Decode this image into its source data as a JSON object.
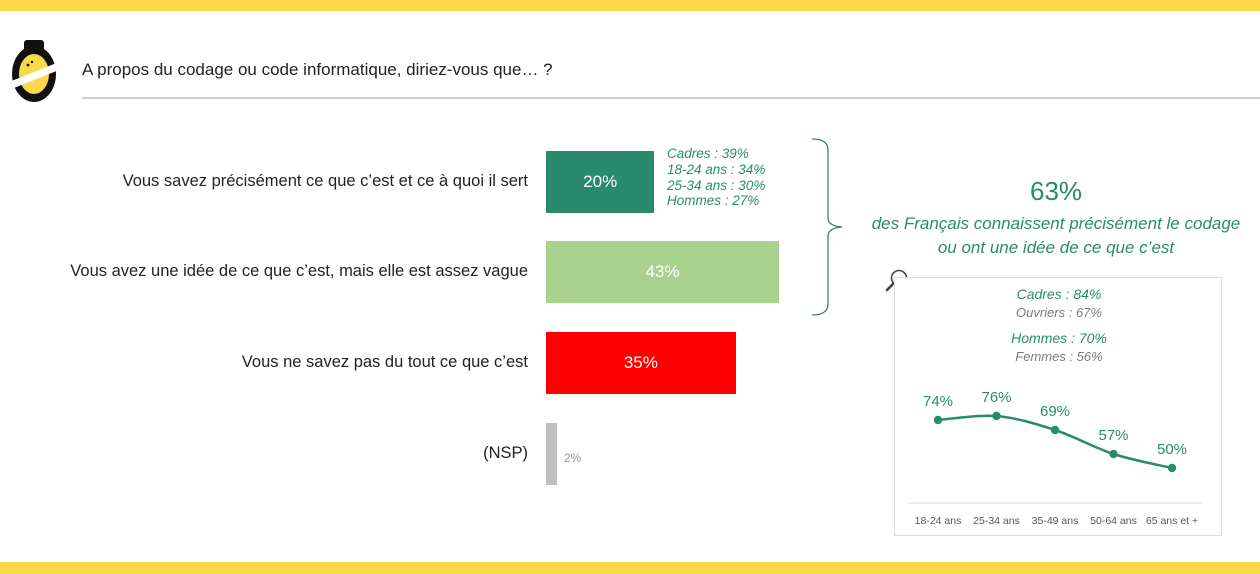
{
  "header": {
    "question": "A propos du codage ou code informatique, diriez-vous que… ?"
  },
  "colors": {
    "band": "#f9d94a",
    "accent_green": "#2a8a6e",
    "light_green": "#a8d18d",
    "red": "#ff0000",
    "grey": "#bfbfbf"
  },
  "chart_data": [
    {
      "type": "bar",
      "orientation": "horizontal",
      "categories": [
        "Vous savez précisément ce que c’est et ce à quoi il sert",
        "Vous avez une idée de ce que c’est, mais elle est assez vague",
        "Vous ne savez pas du tout ce que c’est",
        "(NSP)"
      ],
      "values": [
        20,
        43,
        35,
        2
      ],
      "value_labels": [
        "20%",
        "43%",
        "35%",
        "2%"
      ],
      "colors": [
        "#2a8a6e",
        "#a8d18d",
        "#ff0000",
        "#bfbfbf"
      ],
      "annotations": [
        "Cadres : 39%",
        "18-24 ans : 34%",
        "25-34 ans : 30%",
        "Hommes : 27%"
      ]
    },
    {
      "type": "line",
      "categories": [
        "18-24 ans",
        "25-34 ans",
        "35-49 ans",
        "50-64 ans",
        "65 ans et +"
      ],
      "values": [
        74,
        76,
        69,
        57,
        50
      ],
      "value_labels": [
        "74%",
        "76%",
        "69%",
        "57%",
        "50%"
      ],
      "color": "#2a8a6e",
      "ylim": [
        40,
        80
      ]
    }
  ],
  "summary": {
    "big_pct": "63%",
    "line1": "des Français connaissent précisément le codage",
    "line2": "ou ont une idée de ce que c’est"
  },
  "breakdown": {
    "cadres": "Cadres : 84%",
    "ouvriers": "Ouvriers : 67%",
    "hommes": "Hommes : 70%",
    "femmes": "Femmes : 56%"
  }
}
